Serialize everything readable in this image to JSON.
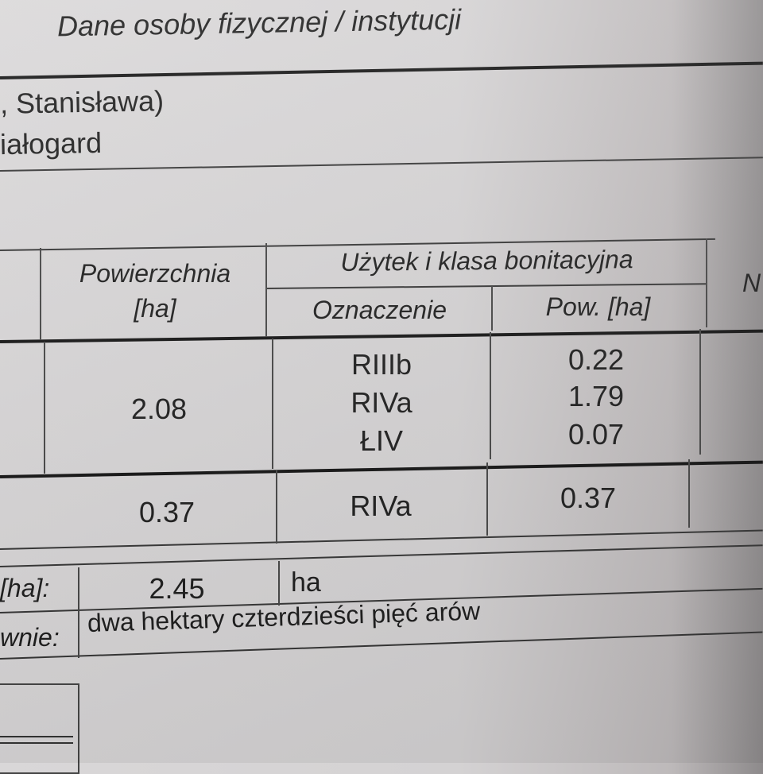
{
  "section_title": "Dane osoby fizycznej / instytucji",
  "owner": {
    "name_line": ", Stanisława)",
    "place_line": "iałogard"
  },
  "table": {
    "headers": {
      "area": "Powierzchnia",
      "area_unit": "[ha]",
      "use_class": "Użytek i klasa bonitacyjna",
      "designation": "Oznaczenie",
      "use_area": "Pow. [ha]",
      "next_col_partial": "N"
    },
    "rows": [
      {
        "area": "2.08",
        "classes": [
          {
            "designation": "RIIIb",
            "area": "0.22"
          },
          {
            "designation": "RIVa",
            "area": "1.79"
          },
          {
            "designation": "ŁIV",
            "area": "0.07"
          }
        ]
      },
      {
        "area": "0.37",
        "classes": [
          {
            "designation": "RIVa",
            "area": "0.37"
          }
        ]
      }
    ]
  },
  "summary": {
    "total_label": "[ha]:",
    "total_value": "2.45",
    "total_unit": "ha",
    "words_label": "wnie:",
    "words_value": "dwa hektary czterdzieści pięć arów"
  }
}
